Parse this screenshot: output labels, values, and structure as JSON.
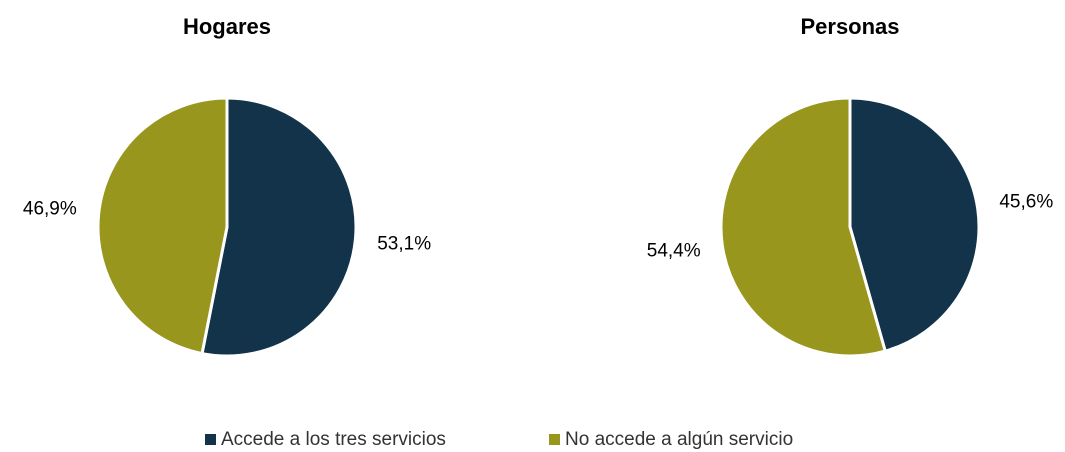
{
  "legend": {
    "labels": [
      "Accede a los tres servicios",
      "No accede a algún servicio"
    ],
    "colors": [
      "#12334a",
      "#98961c"
    ]
  },
  "chart_data": [
    {
      "type": "pie",
      "title": "Hogares",
      "values": [
        53.1,
        46.9
      ],
      "value_labels": [
        "53,1%",
        "46,9%"
      ]
    },
    {
      "type": "pie",
      "title": "Personas",
      "values": [
        45.6,
        54.4
      ],
      "value_labels": [
        "45,6%",
        "54,4%"
      ]
    }
  ]
}
